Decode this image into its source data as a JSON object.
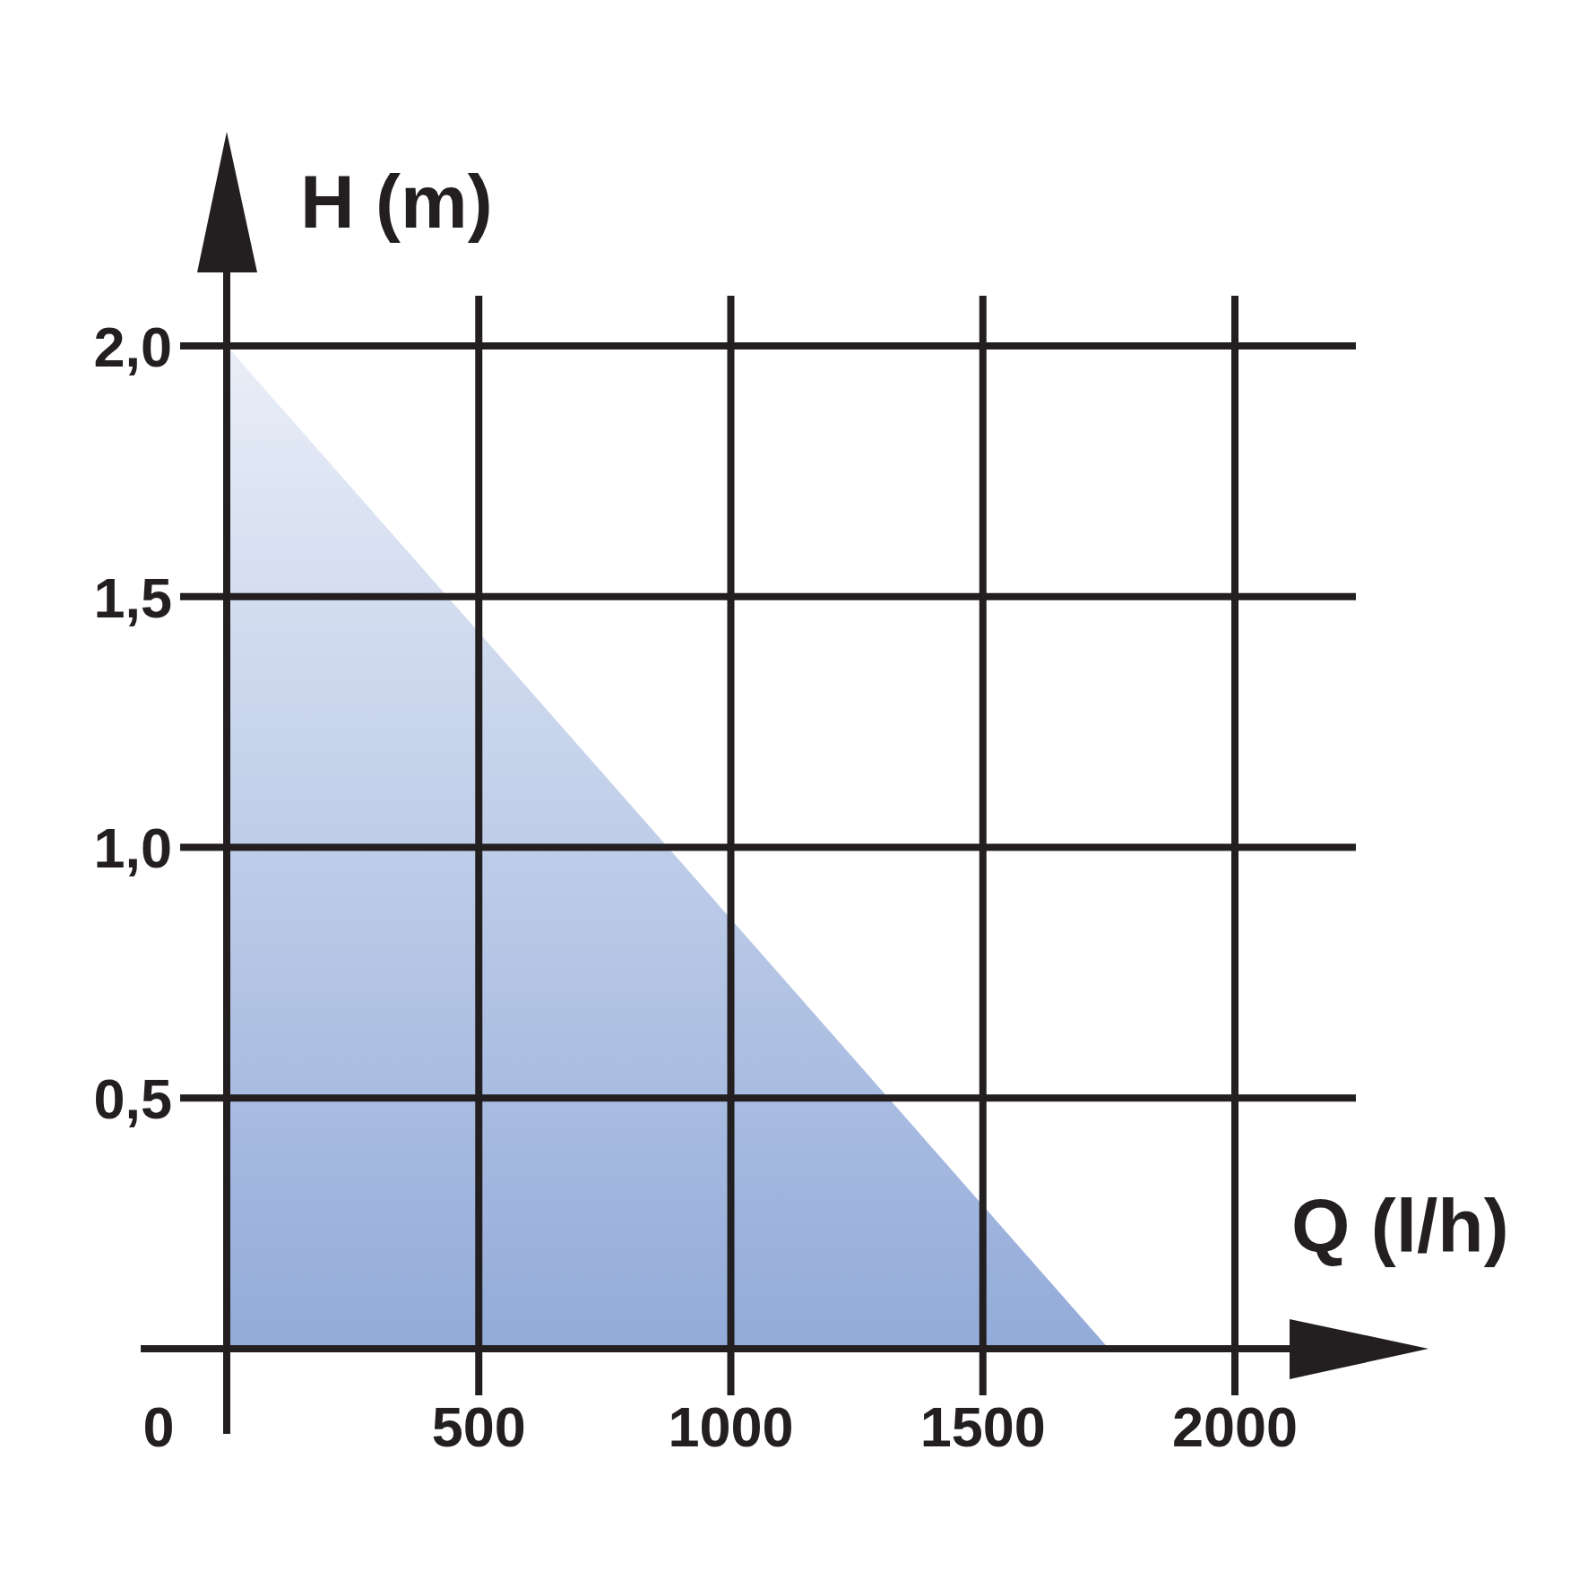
{
  "chart_data": {
    "type": "area",
    "xlabel": "Q (l/h)",
    "ylabel": "H (m)",
    "x": [
      0,
      1750
    ],
    "values": [
      2.0,
      0
    ],
    "color": "#93abd9",
    "xlim": [
      0,
      2240
    ],
    "ylim": [
      0,
      2.1
    ],
    "xticks": [
      {
        "value": 0,
        "label": null
      },
      500,
      1000,
      1500,
      2000
    ],
    "yticks": [
      {
        "value": 0,
        "label": null
      },
      {
        "value": 0.5,
        "label": "0,5"
      },
      {
        "value": 1.0,
        "label": "1,0"
      },
      {
        "value": 1.5,
        "label": "1,5"
      },
      {
        "value": 2.0,
        "label": "2,0"
      }
    ],
    "annotations": [
      "0"
    ],
    "grid": true
  }
}
